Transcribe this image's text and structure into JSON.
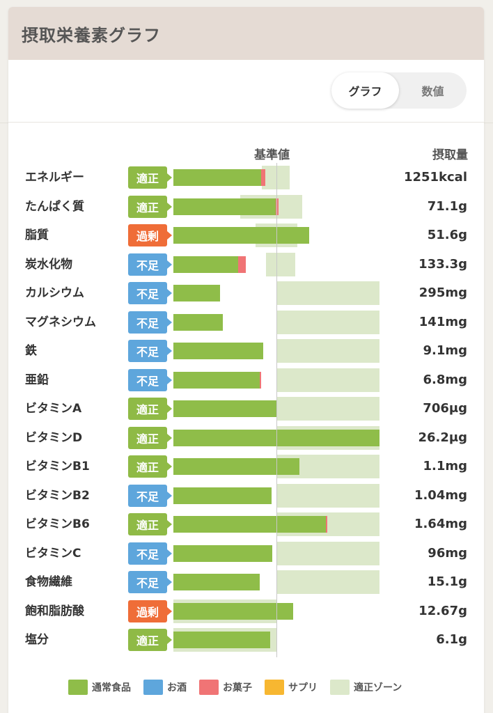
{
  "header": {
    "title": "摂取栄養素グラフ"
  },
  "toggle": {
    "graph_label": "グラフ",
    "value_label": "数値",
    "active": "graph"
  },
  "columns": {
    "reference": "基準値",
    "amount": "摂取量"
  },
  "colors": {
    "normal_food": "#8fbd49",
    "alcohol": "#5ea6dc",
    "snacks": "#f07475",
    "supplement": "#f7b731",
    "proper_zone": "#dce8ca",
    "status_ok": "#8fba46",
    "status_low": "#5ea6dc",
    "status_over": "#ef6d38"
  },
  "status_labels": {
    "ok": "適正",
    "low": "不足",
    "over": "過剰"
  },
  "chart_data": {
    "type": "bar",
    "orientation": "horizontal",
    "reference_line": 100,
    "unit_note": "percent of reference value",
    "xlim": [
      0,
      200
    ],
    "series_names": [
      "通常食品",
      "お酒",
      "お菓子",
      "サプリ"
    ],
    "rows": [
      {
        "name": "エネルギー",
        "status": "適正",
        "status_key": "ok",
        "amount": "1251kcal",
        "food": 85,
        "snack": 4,
        "zone": [
          86,
          113
        ]
      },
      {
        "name": "たんぱく質",
        "status": "適正",
        "status_key": "ok",
        "amount": "71.1g",
        "food": 99,
        "snack": 3,
        "zone": [
          65,
          125
        ]
      },
      {
        "name": "脂質",
        "status": "過剰",
        "status_key": "over",
        "amount": "51.6g",
        "food": 132,
        "snack": 0,
        "zone": [
          80,
          120
        ]
      },
      {
        "name": "炭水化物",
        "status": "不足",
        "status_key": "low",
        "amount": "133.3g",
        "food": 63,
        "snack": 7,
        "zone": [
          90,
          118
        ]
      },
      {
        "name": "カルシウム",
        "status": "不足",
        "status_key": "low",
        "amount": "295mg",
        "food": 45,
        "snack": 0,
        "zone": [
          100,
          200
        ]
      },
      {
        "name": "マグネシウム",
        "status": "不足",
        "status_key": "low",
        "amount": "141mg",
        "food": 48,
        "snack": 0,
        "zone": [
          100,
          200
        ]
      },
      {
        "name": "鉄",
        "status": "不足",
        "status_key": "low",
        "amount": "9.1mg",
        "food": 87,
        "snack": 0,
        "zone": [
          100,
          200
        ]
      },
      {
        "name": "亜鉛",
        "status": "不足",
        "status_key": "low",
        "amount": "6.8mg",
        "food": 84,
        "snack": 1,
        "zone": [
          100,
          200
        ]
      },
      {
        "name": "ビタミンA",
        "status": "適正",
        "status_key": "ok",
        "amount": "706μg",
        "food": 101,
        "snack": 0,
        "zone": [
          100,
          200
        ]
      },
      {
        "name": "ビタミンD",
        "status": "適正",
        "status_key": "ok",
        "amount": "26.2μg",
        "food": 200,
        "snack": 0,
        "zone": [
          100,
          200
        ]
      },
      {
        "name": "ビタミンB1",
        "status": "適正",
        "status_key": "ok",
        "amount": "1.1mg",
        "food": 122,
        "snack": 0,
        "zone": [
          100,
          200
        ]
      },
      {
        "name": "ビタミンB2",
        "status": "不足",
        "status_key": "low",
        "amount": "1.04mg",
        "food": 95,
        "snack": 0,
        "zone": [
          100,
          200
        ]
      },
      {
        "name": "ビタミンB6",
        "status": "適正",
        "status_key": "ok",
        "amount": "1.64mg",
        "food": 148,
        "snack": 1,
        "zone": [
          100,
          200
        ]
      },
      {
        "name": "ビタミンC",
        "status": "不足",
        "status_key": "low",
        "amount": "96mg",
        "food": 96,
        "snack": 0,
        "zone": [
          100,
          200
        ]
      },
      {
        "name": "食物繊維",
        "status": "不足",
        "status_key": "low",
        "amount": "15.1g",
        "food": 84,
        "snack": 0,
        "zone": [
          100,
          200
        ]
      },
      {
        "name": "飽和脂肪酸",
        "status": "過剰",
        "status_key": "over",
        "amount": "12.67g",
        "food": 116,
        "snack": 0,
        "zone": [
          0,
          100
        ]
      },
      {
        "name": "塩分",
        "status": "適正",
        "status_key": "ok",
        "amount": "6.1g",
        "food": 94,
        "snack": 0,
        "zone": [
          0,
          100
        ]
      }
    ]
  },
  "legend": [
    {
      "label": "通常食品",
      "color": "#8fbd49"
    },
    {
      "label": "お酒",
      "color": "#5ea6dc"
    },
    {
      "label": "お菓子",
      "color": "#f07475"
    },
    {
      "label": "サプリ",
      "color": "#f7b731"
    },
    {
      "label": "適正ゾーン",
      "color": "#dce8ca"
    }
  ]
}
